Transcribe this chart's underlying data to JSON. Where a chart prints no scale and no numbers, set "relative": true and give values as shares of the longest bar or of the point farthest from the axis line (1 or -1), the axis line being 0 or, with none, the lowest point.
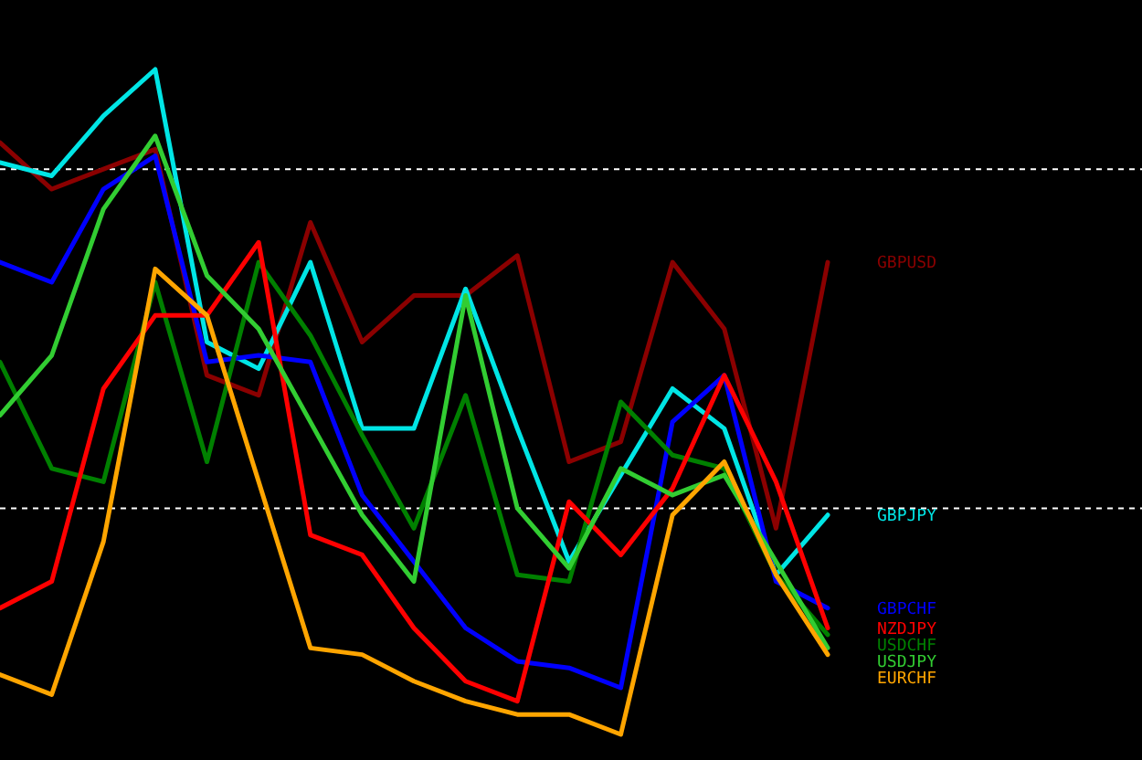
{
  "chart_data": {
    "type": "line",
    "relative": true,
    "categories": [
      null,
      null,
      null,
      null,
      null,
      null,
      null,
      null,
      null,
      null,
      null,
      null,
      null,
      null,
      null,
      null,
      null
    ],
    "series": [
      {
        "name": "GBPUSD",
        "color": "#8b0000",
        "values": [
          0.89,
          0.82,
          0.85,
          0.88,
          0.54,
          0.51,
          0.77,
          0.59,
          0.66,
          0.66,
          0.72,
          0.41,
          0.44,
          0.71,
          0.61,
          0.31,
          0.71
        ]
      },
      {
        "name": "GBPJPY",
        "color": "#00e5e5",
        "values": [
          0.86,
          0.84,
          0.93,
          1,
          0.59,
          0.55,
          0.71,
          0.46,
          0.46,
          0.67,
          0.46,
          0.26,
          0.39,
          0.52,
          0.46,
          0.24,
          0.33
        ]
      },
      {
        "name": "GBPCHF",
        "color": "#0000ff",
        "values": [
          0.71,
          0.68,
          0.82,
          0.87,
          0.56,
          0.57,
          0.56,
          0.36,
          0.26,
          0.16,
          0.11,
          0.1,
          0.07,
          0.47,
          0.54,
          0.23,
          0.19
        ]
      },
      {
        "name": "USDCHF",
        "color": "#008000",
        "values": [
          0.56,
          0.4,
          0.38,
          0.68,
          0.41,
          0.71,
          0.6,
          0.45,
          0.31,
          0.51,
          0.24,
          0.23,
          0.5,
          0.42,
          0.4,
          0.24,
          0.15
        ]
      },
      {
        "name": "NZDJPY",
        "color": "#ff0000",
        "values": [
          0.19,
          0.23,
          0.52,
          0.63,
          0.63,
          0.74,
          0.3,
          0.27,
          0.16,
          0.08,
          0.05,
          0.35,
          0.27,
          0.37,
          0.54,
          0.38,
          0.16
        ]
      },
      {
        "name": "USDJPY",
        "color": "#32cd32",
        "values": [
          0.48,
          0.57,
          0.79,
          0.9,
          0.69,
          0.61,
          0.47,
          0.33,
          0.23,
          0.66,
          0.34,
          0.25,
          0.4,
          0.36,
          0.39,
          0.26,
          0.13
        ]
      },
      {
        "name": "EURCHF",
        "color": "#ffa500",
        "values": [
          0.09,
          0.06,
          0.29,
          0.7,
          0.63,
          0.38,
          0.13,
          0.12,
          0.08,
          0.05,
          0.03,
          0.03,
          0,
          0.33,
          0.41,
          0.24,
          0.12
        ]
      }
    ],
    "ref_lines": [
      {
        "axis": "y",
        "value": 0.85,
        "color": "#ffffff",
        "line_style": "dashed"
      },
      {
        "axis": "y",
        "value": 0.34,
        "color": "#ffffff",
        "line_style": "dashed"
      }
    ]
  }
}
